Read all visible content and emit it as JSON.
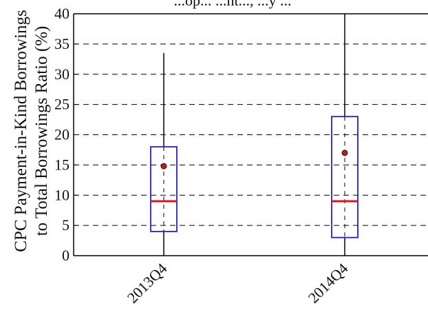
{
  "chart_data": {
    "type": "box",
    "title": "...op... ...nt..., ...y ...",
    "ylabel_lines": [
      "CPC Payment-in-Kind Borrowings",
      "to Total Borrowings Ratio (%)"
    ],
    "xlabel": "",
    "ylim": [
      0,
      40
    ],
    "y_ticks": [
      0,
      5,
      10,
      15,
      20,
      25,
      30,
      35,
      40
    ],
    "grid": "horizontal-dashed",
    "categories": [
      "2013Q4",
      "2014Q4"
    ],
    "boxes": [
      {
        "category": "2013Q4",
        "whisker_low": 0,
        "q1": 4,
        "median": 9,
        "q3": 18,
        "whisker_high": 33.5,
        "mean": 14.8
      },
      {
        "category": "2014Q4",
        "whisker_low": 0,
        "q1": 3,
        "median": 9,
        "q3": 23,
        "whisker_high": 40,
        "mean": 17
      }
    ],
    "colors": {
      "box": "#1f1fd6",
      "median": "#e0141e",
      "mean_fill": "#b22222",
      "mean_edge": "#3a0a0a",
      "whisker": "#000000",
      "grid": "#000000"
    }
  }
}
